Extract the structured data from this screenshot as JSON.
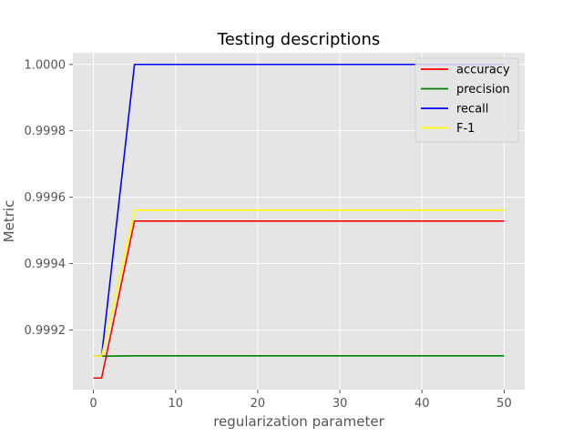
{
  "chart_data": {
    "type": "line",
    "title": "Testing descriptions",
    "xlabel": "regularization parameter",
    "ylabel": "Metric",
    "xlim": [
      -2.5,
      52.5
    ],
    "ylim": [
      0.99902,
      1.000035
    ],
    "xticks": [
      0,
      10,
      20,
      30,
      40,
      50
    ],
    "xtick_labels": [
      "0",
      "10",
      "20",
      "30",
      "40",
      "50"
    ],
    "yticks": [
      0.9992,
      0.9994,
      0.9996,
      0.9998,
      1.0
    ],
    "ytick_labels": [
      "0.9992",
      "0.9994",
      "0.9996",
      "0.9998",
      "1.0000"
    ],
    "grid": true,
    "legend_position": "top-right",
    "series": [
      {
        "name": "accuracy",
        "color": "#ff0000",
        "x": [
          0,
          1,
          5,
          10,
          20,
          30,
          40,
          50
        ],
        "y": [
          0.999055,
          0.999055,
          0.999528,
          0.999528,
          0.999528,
          0.999528,
          0.999528,
          0.999528
        ]
      },
      {
        "name": "precision",
        "color": "#008000",
        "x": [
          0,
          1,
          5,
          10,
          20,
          30,
          40,
          50
        ],
        "y": [
          0.999121,
          0.999121,
          0.999122,
          0.999122,
          0.999122,
          0.999122,
          0.999122,
          0.999122
        ]
      },
      {
        "name": "recall",
        "color": "#0000ff",
        "x": [
          0,
          1,
          5,
          10,
          20,
          30,
          40,
          50
        ],
        "y": [
          0.999121,
          0.999121,
          1.0,
          1.0,
          1.0,
          1.0,
          1.0,
          1.0
        ]
      },
      {
        "name": "F-1",
        "color": "#ffff00",
        "x": [
          0,
          1,
          5,
          10,
          20,
          30,
          40,
          50
        ],
        "y": [
          0.999121,
          0.999121,
          0.999561,
          0.999561,
          0.999561,
          0.999561,
          0.999561,
          0.999561
        ]
      }
    ]
  }
}
